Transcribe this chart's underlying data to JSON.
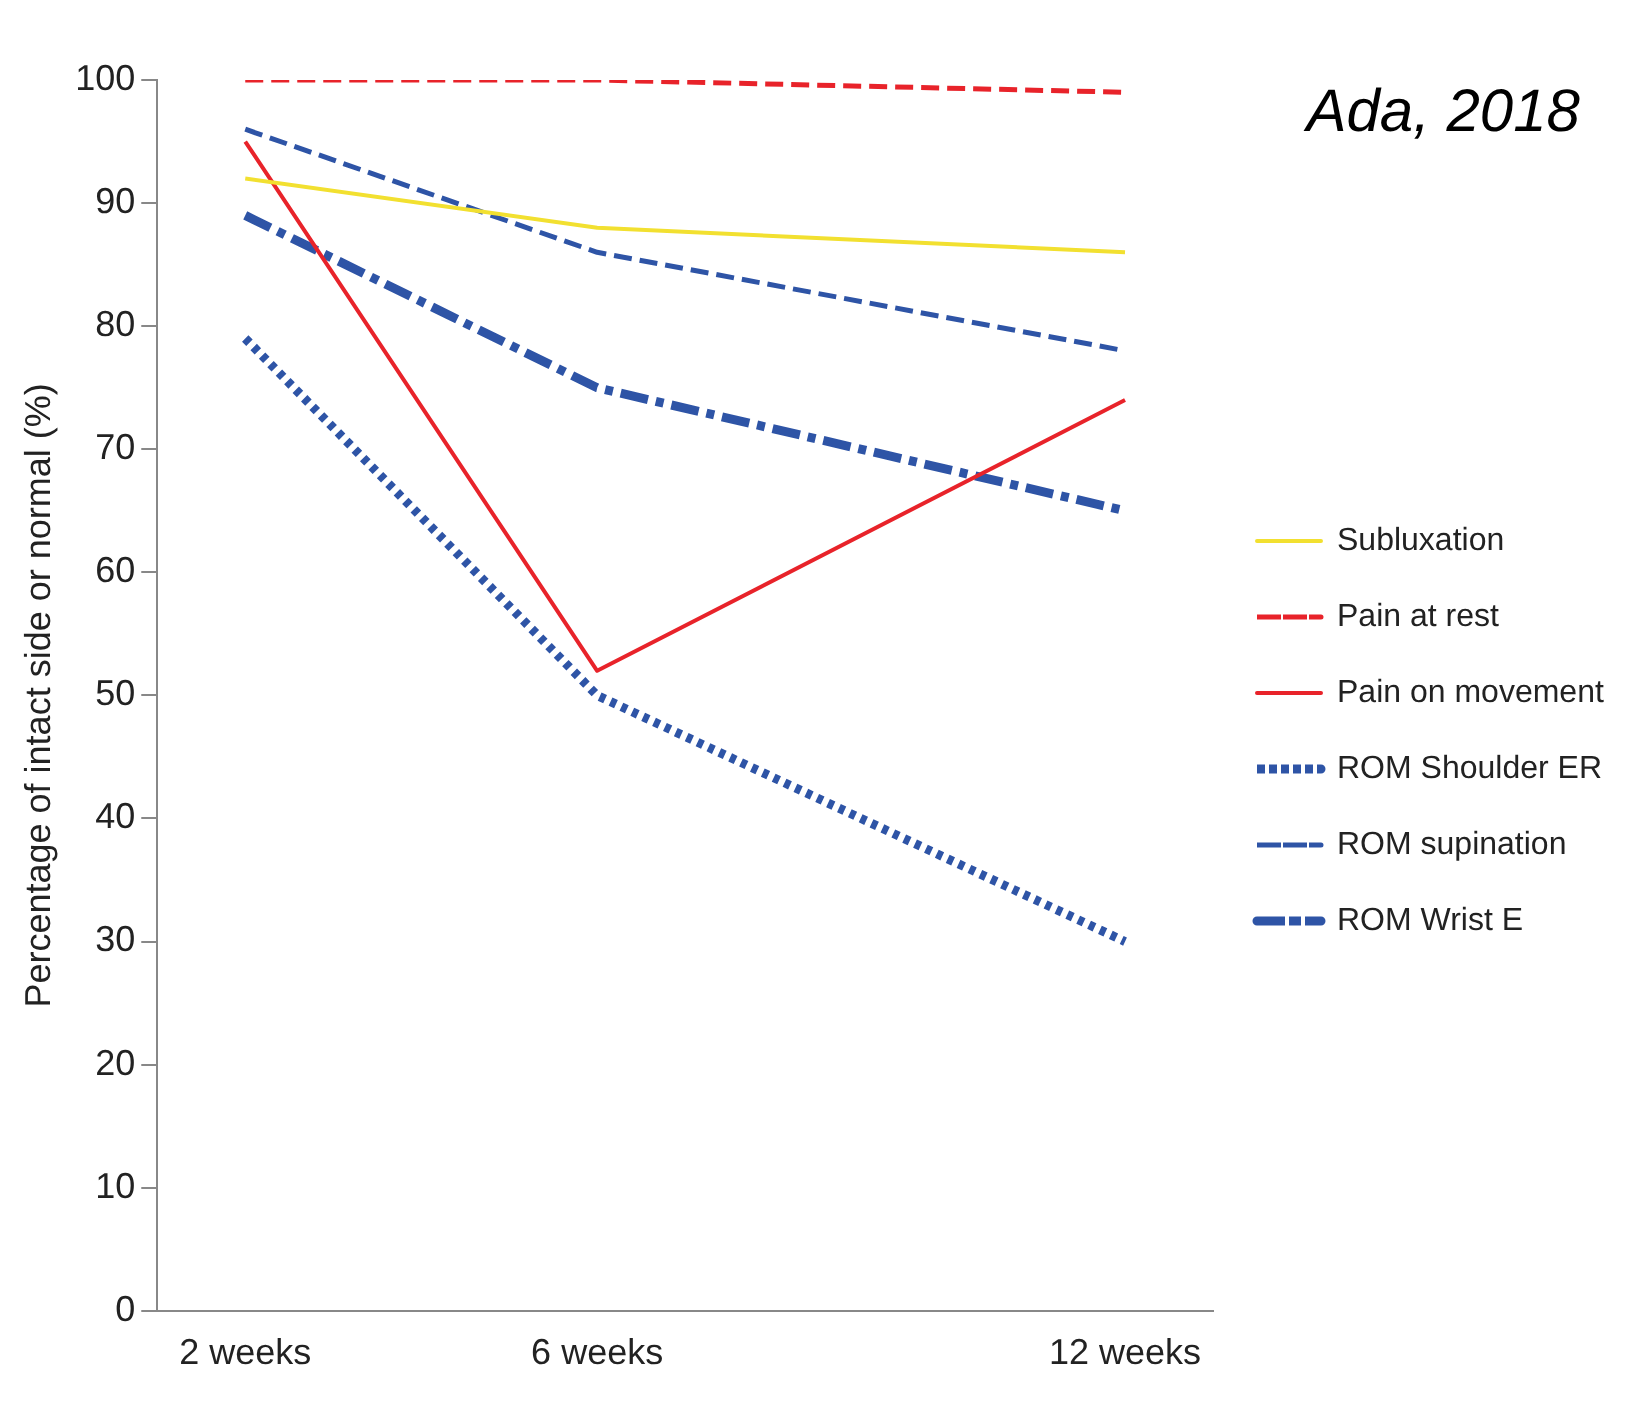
{
  "chart_data": {
    "type": "line",
    "ylabel": "Percentage of intact side or normal (%)",
    "annotations": [
      "Ada, 2018"
    ],
    "x": [
      2,
      6,
      12
    ],
    "xlim": [
      1,
      13
    ],
    "xticks": [
      {
        "value": 2,
        "label": "2 weeks"
      },
      {
        "value": 6,
        "label": "6 weeks"
      },
      {
        "value": 12,
        "label": "12 weeks"
      }
    ],
    "ylim": [
      0,
      100
    ],
    "yticks": [
      0,
      10,
      20,
      30,
      40,
      50,
      60,
      70,
      80,
      90,
      100
    ],
    "grid": false,
    "legend": "right",
    "marker": "none",
    "series": [
      {
        "name": "Subluxation",
        "color": "#f2e030",
        "line_style": "solid",
        "values": [
          92,
          88,
          86
        ]
      },
      {
        "name": "Pain at rest",
        "color": "#e8232a",
        "line_style": "dashed",
        "values": [
          100,
          100,
          99
        ]
      },
      {
        "name": "Pain on movement",
        "color": "#e8232a",
        "line_style": "solid",
        "values": [
          95,
          52,
          74
        ]
      },
      {
        "name": "ROM Shoulder ER",
        "color": "#2e54a6",
        "line_style": "dotted",
        "values": [
          79,
          50,
          30
        ]
      },
      {
        "name": "ROM supination",
        "color": "#2e54a6",
        "line_style": "dashed",
        "values": [
          96,
          86,
          78
        ]
      },
      {
        "name": "ROM Wrist E",
        "color": "#2e54a6",
        "line_style": "dashdot",
        "values": [
          89,
          75,
          65
        ]
      }
    ]
  }
}
